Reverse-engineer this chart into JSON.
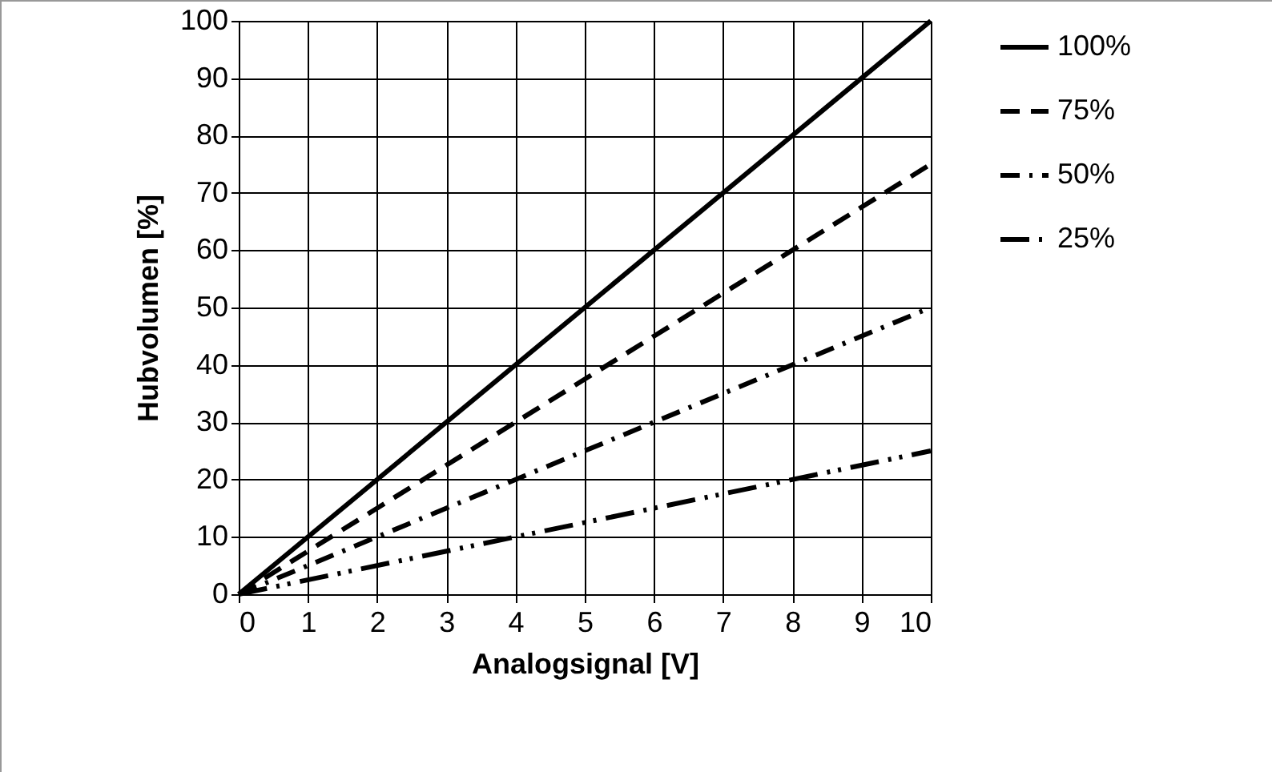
{
  "chart_data": {
    "type": "line",
    "xlabel": "Analogsignal [V]",
    "ylabel": "Hubvolumen [%]",
    "x": [
      0,
      10
    ],
    "xlim": [
      0,
      10
    ],
    "xticks": [
      0,
      1,
      2,
      3,
      4,
      5,
      6,
      7,
      8,
      9,
      10
    ],
    "ylim": [
      0,
      100
    ],
    "yticks": [
      0,
      10,
      20,
      30,
      40,
      50,
      60,
      70,
      80,
      90,
      100
    ],
    "grid": true,
    "legend": "right",
    "marker": "none",
    "series": [
      {
        "name": "100%",
        "color": "#000000",
        "line_style": "solid",
        "values": [
          0,
          100
        ]
      },
      {
        "name": "75%",
        "color": "#000000",
        "line_style": "dashed",
        "values": [
          0,
          75
        ]
      },
      {
        "name": "50%",
        "color": "#000000",
        "line_style": "dashdot",
        "values": [
          0,
          50
        ]
      },
      {
        "name": "25%",
        "color": "#000000",
        "line_style": "longdashdotdot",
        "values": [
          0,
          25
        ]
      }
    ]
  }
}
